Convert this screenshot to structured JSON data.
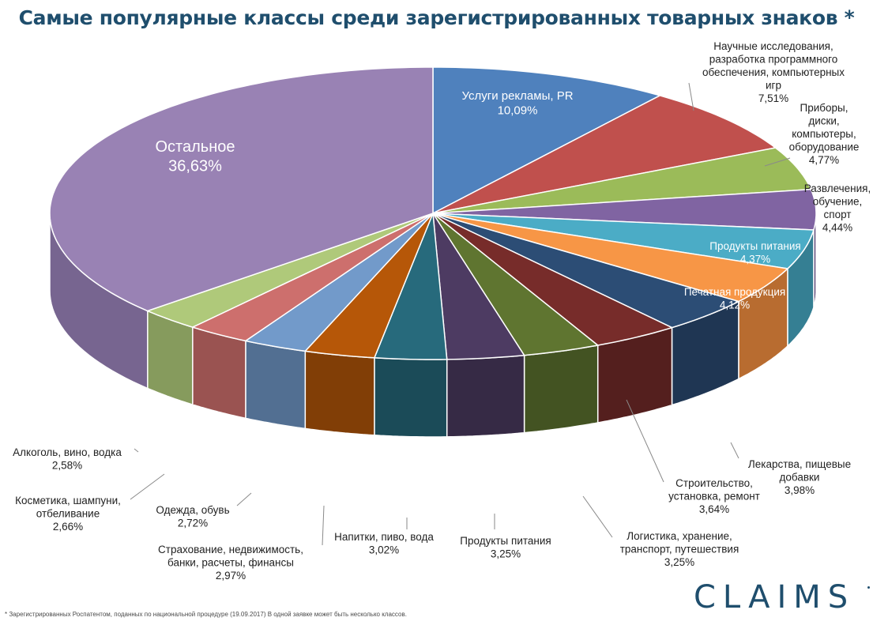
{
  "title": "Самые популярные классы среди зарегистрированных товарных знаков *",
  "footnote": "* Зарегистрированных Роспатентом, поданных по национальной процедуре (19.09.2017) В одной заявке может быть несколько классов.",
  "logo": "CLAIMS",
  "chart_data": {
    "type": "pie",
    "unit": "%",
    "slices": [
      {
        "label": [
          "Услуги рекламы, PR"
        ],
        "value_text": "10,09%",
        "value": 10.09,
        "color": "#4f81bd",
        "side": "#3b6190",
        "label_color": "#ffffff"
      },
      {
        "label": [
          "Научные исследования,",
          "разработка программного",
          "обеспечения, компьютерных",
          "игр"
        ],
        "value_text": "7,51%",
        "value": 7.51,
        "color": "#c0504d",
        "side": "#8f3b39",
        "label_color": "#222222"
      },
      {
        "label": [
          "Приборы,",
          "диски,",
          "компьютеры,",
          "оборудование"
        ],
        "value_text": "4,77%",
        "value": 4.77,
        "color": "#9bbb59",
        "side": "#739043",
        "label_color": "#222222"
      },
      {
        "label": [
          "Развлечения,",
          "обучение,",
          "спорт"
        ],
        "value_text": "4,44%",
        "value": 4.44,
        "color": "#8064a2",
        "side": "#5e4a78",
        "label_color": "#222222"
      },
      {
        "label": [
          "Продукты питания"
        ],
        "value_text": "4,37%",
        "value": 4.37,
        "color": "#4bacc6",
        "side": "#357f93",
        "label_color": "#ffffff"
      },
      {
        "label": [
          "Печатная продукция"
        ],
        "value_text": "4,12%",
        "value": 4.12,
        "color": "#f79646",
        "side": "#b86c30",
        "label_color": "#ffffff"
      },
      {
        "label": [
          "Лекарства, пищевые",
          "добавки"
        ],
        "value_text": "3,98%",
        "value": 3.98,
        "color": "#2c4d75",
        "side": "#1f3653",
        "label_color": "#222222"
      },
      {
        "label": [
          "Строительство,",
          "установка, ремонт"
        ],
        "value_text": "3,64%",
        "value": 3.64,
        "color": "#772c2a",
        "side": "#541f1e",
        "label_color": "#222222"
      },
      {
        "label": [
          "Логистика, хранение,",
          "транспорт, путешествия"
        ],
        "value_text": "3,25%",
        "value": 3.25,
        "color": "#5f7530",
        "side": "#435322",
        "label_color": "#222222"
      },
      {
        "label": [
          "Продукты питания"
        ],
        "value_text": "3,25%",
        "value": 3.25,
        "color": "#4d3b62",
        "side": "#362a45",
        "label_color": "#222222"
      },
      {
        "label": [
          "Напитки, пиво, вода"
        ],
        "value_text": "3,02%",
        "value": 3.02,
        "color": "#276a7c",
        "side": "#1b4b58",
        "label_color": "#222222"
      },
      {
        "label": [
          "Страхование, недвижимость,",
          "банки, расчеты, финансы"
        ],
        "value_text": "2,97%",
        "value": 2.97,
        "color": "#b65708",
        "side": "#813e06",
        "label_color": "#222222"
      },
      {
        "label": [
          "Одежда, обувь"
        ],
        "value_text": "2,72%",
        "value": 2.72,
        "color": "#729aca",
        "side": "#526f92",
        "label_color": "#222222"
      },
      {
        "label": [
          "Косметика, шампуни,",
          "отбеливание"
        ],
        "value_text": "2,66%",
        "value": 2.66,
        "color": "#cd6f6d",
        "side": "#9a5351",
        "label_color": "#222222"
      },
      {
        "label": [
          "Алкоголь, вино, водка"
        ],
        "value_text": "2,58%",
        "value": 2.58,
        "color": "#afc97a",
        "side": "#869b5d",
        "label_color": "#222222"
      },
      {
        "label": [
          "Остальное"
        ],
        "value_text": "36,63%",
        "value": 36.63,
        "color": "#9982b4",
        "side": "#776590",
        "label_color": "#ffffff"
      }
    ]
  }
}
